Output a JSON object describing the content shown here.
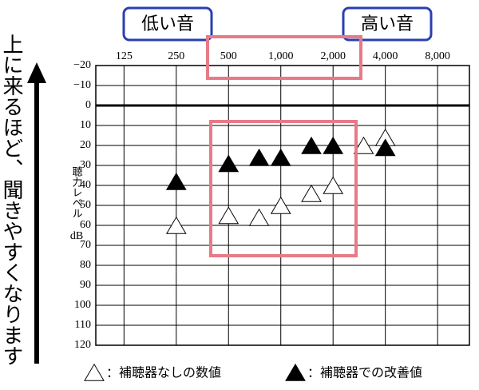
{
  "chart_data": {
    "type": "audiogram",
    "left_note": "上に来るほど、聞きやすくなります",
    "low_label": "低い音",
    "high_label": "高い音",
    "ylabel": "聴力レベル",
    "yunit": "dB",
    "x": [
      250,
      500,
      750,
      1000,
      1500,
      2000,
      3000,
      4000
    ],
    "xlim": [
      86,
      12200
    ],
    "log_x": true,
    "xticks": [
      125,
      250,
      {
        "value": 500,
        "label": "500"
      },
      {
        "value": 1000,
        "label": "1,000"
      },
      {
        "value": 2000,
        "label": "2,000"
      },
      {
        "value": 4000,
        "label": "4,000"
      },
      {
        "value": 8000,
        "label": "8,000"
      }
    ],
    "ylim": [
      -20,
      120
    ],
    "inverted_y": true,
    "yticks": [
      {
        "value": -20,
        "label": "−20"
      },
      {
        "value": -10,
        "label": "−10"
      },
      0,
      10,
      20,
      30,
      40,
      50,
      60,
      70,
      80,
      90,
      100,
      110,
      120
    ],
    "grid": true,
    "series": [
      {
        "name": "：補聴器なしの数値",
        "color": "#ffffff",
        "marker": "open-triangle",
        "values": [
          60,
          55,
          56,
          50,
          44,
          40,
          20,
          16
        ]
      },
      {
        "name": "：補聴器での改善値",
        "color": "#000000",
        "marker": "filled-triangle",
        "values": [
          38,
          29,
          26,
          26,
          20,
          20,
          null,
          21
        ]
      }
    ]
  }
}
